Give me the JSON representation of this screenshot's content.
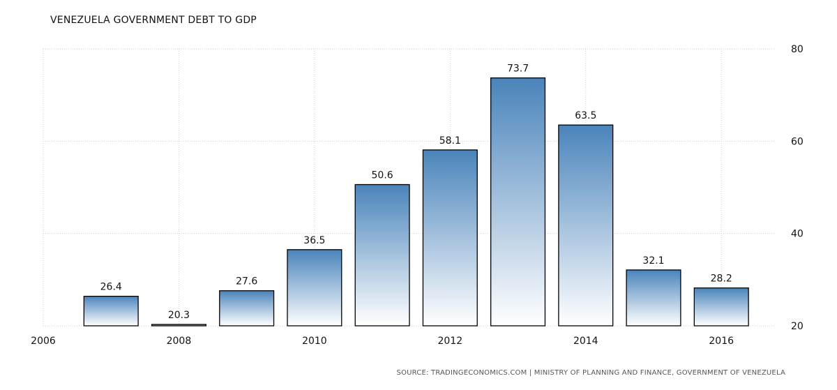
{
  "chart_data": {
    "type": "bar",
    "title": "VENEZUELA GOVERNMENT DEBT TO GDP",
    "source": "SOURCE: TRADINGECONOMICS.COM | MINISTRY OF PLANNING AND FINANCE, GOVERNMENT OF VENEZUELA",
    "categories": [
      "2007",
      "2008",
      "2009",
      "2010",
      "2011",
      "2012",
      "2013",
      "2014",
      "2015",
      "2016"
    ],
    "values": [
      26.4,
      20.3,
      27.6,
      36.5,
      50.6,
      58.1,
      73.7,
      63.5,
      32.1,
      28.2
    ],
    "x_ticks": [
      "2006",
      "2008",
      "2010",
      "2012",
      "2014",
      "2016"
    ],
    "y_ticks": [
      20,
      40,
      60,
      80
    ],
    "ylim": [
      20,
      80
    ],
    "xlim": [
      2006,
      2016.8
    ],
    "y_axis_position": "right",
    "grid": true,
    "bar_color": "#4a84bb",
    "bar_fade_color": "#ffffff"
  }
}
